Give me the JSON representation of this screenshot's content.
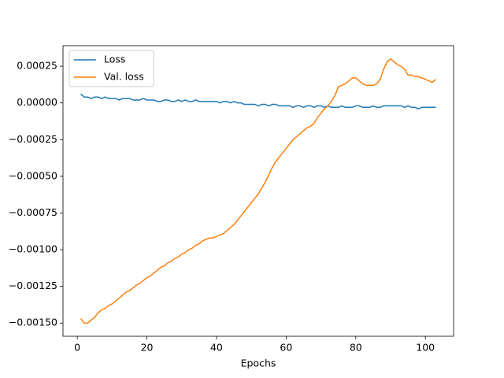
{
  "chart_data": {
    "type": "line",
    "xlabel": "Epochs",
    "x": [
      1,
      2,
      3,
      4,
      5,
      6,
      7,
      8,
      9,
      10,
      11,
      12,
      13,
      14,
      15,
      16,
      17,
      18,
      19,
      20,
      21,
      22,
      23,
      24,
      25,
      26,
      27,
      28,
      29,
      30,
      31,
      32,
      33,
      34,
      35,
      36,
      37,
      38,
      39,
      40,
      41,
      42,
      43,
      44,
      45,
      46,
      47,
      48,
      49,
      50,
      51,
      52,
      53,
      54,
      55,
      56,
      57,
      58,
      59,
      60,
      61,
      62,
      63,
      64,
      65,
      66,
      67,
      68,
      69,
      70,
      71,
      72,
      73,
      74,
      75,
      76,
      77,
      78,
      79,
      80,
      81,
      82,
      83,
      84,
      85,
      86,
      87,
      88,
      89,
      90,
      91,
      92,
      93,
      94,
      95,
      96,
      97,
      98,
      99,
      100,
      101,
      102,
      103
    ],
    "series": [
      {
        "name": "Loss",
        "color": "#1f77b4",
        "values": [
          6e-05,
          4e-05,
          4e-05,
          3e-05,
          4e-05,
          4e-05,
          3e-05,
          4e-05,
          3e-05,
          3e-05,
          3e-05,
          2e-05,
          3e-05,
          3e-05,
          3e-05,
          2e-05,
          2e-05,
          2e-05,
          3e-05,
          2e-05,
          2e-05,
          2e-05,
          1e-05,
          1e-05,
          2e-05,
          2e-05,
          1e-05,
          1e-05,
          2e-05,
          1e-05,
          2e-05,
          1e-05,
          1e-05,
          2e-05,
          1e-05,
          1e-05,
          1e-05,
          1e-05,
          1e-05,
          1e-05,
          0,
          1e-05,
          1e-05,
          0,
          1e-05,
          0,
          0,
          -1e-05,
          -1e-05,
          -1e-05,
          -1e-05,
          -2e-05,
          -1e-05,
          -1e-05,
          -2e-05,
          -1e-05,
          -1e-05,
          -2e-05,
          -2e-05,
          -2e-05,
          -2e-05,
          -3e-05,
          -2e-05,
          -2e-05,
          -3e-05,
          -2e-05,
          -2e-05,
          -3e-05,
          -2e-05,
          -2e-05,
          -3e-05,
          -2e-05,
          -3e-05,
          -3e-05,
          -3e-05,
          -2e-05,
          -3e-05,
          -3e-05,
          -3e-05,
          -2e-05,
          -2e-05,
          -3e-05,
          -3e-05,
          -3e-05,
          -2e-05,
          -3e-05,
          -3e-05,
          -2e-05,
          -2e-05,
          -2e-05,
          -2e-05,
          -2e-05,
          -2e-05,
          -3e-05,
          -2e-05,
          -3e-05,
          -3e-05,
          -4e-05,
          -3e-05,
          -3e-05,
          -3e-05,
          -3e-05,
          -3e-05
        ]
      },
      {
        "name": "Val. loss",
        "color": "#ff7f0e",
        "values": [
          -0.00147,
          -0.0015,
          -0.0015,
          -0.00148,
          -0.00146,
          -0.00143,
          -0.00141,
          -0.0014,
          -0.00138,
          -0.00137,
          -0.00135,
          -0.00133,
          -0.00131,
          -0.00129,
          -0.00128,
          -0.00126,
          -0.00124,
          -0.00123,
          -0.00121,
          -0.00119,
          -0.00118,
          -0.00116,
          -0.00114,
          -0.00112,
          -0.00111,
          -0.00109,
          -0.00108,
          -0.00106,
          -0.00105,
          -0.00103,
          -0.00102,
          -0.001,
          -0.00099,
          -0.00097,
          -0.00096,
          -0.00094,
          -0.00093,
          -0.00092,
          -0.00092,
          -0.00091,
          -0.0009,
          -0.00089,
          -0.00087,
          -0.00085,
          -0.00083,
          -0.0008,
          -0.00077,
          -0.00074,
          -0.00071,
          -0.00068,
          -0.00065,
          -0.00062,
          -0.00058,
          -0.00054,
          -0.00049,
          -0.00044,
          -0.0004,
          -0.00037,
          -0.00034,
          -0.00031,
          -0.00028,
          -0.00025,
          -0.00023,
          -0.00021,
          -0.00019,
          -0.00017,
          -0.00016,
          -0.00014,
          -0.0001,
          -7e-05,
          -4e-05,
          -2e-05,
          1e-05,
          5e-05,
          0.00011,
          0.00012,
          0.00013,
          0.00015,
          0.00017,
          0.00017,
          0.00015,
          0.00013,
          0.00012,
          0.00012,
          0.00012,
          0.00013,
          0.00016,
          0.00023,
          0.00028,
          0.0003,
          0.00028,
          0.00026,
          0.00025,
          0.00023,
          0.00019,
          0.00019,
          0.00018,
          0.00018,
          0.00017,
          0.00016,
          0.00015,
          0.00014,
          0.00016
        ]
      }
    ],
    "xlim": [
      -4.1,
      108.1
    ],
    "ylim": [
      -0.00159,
      0.00039
    ],
    "xticks": [
      0,
      20,
      40,
      60,
      80,
      100
    ],
    "yticks": [
      {
        "value": -0.0015,
        "label": "−0.00150"
      },
      {
        "value": -0.00125,
        "label": "−0.00125"
      },
      {
        "value": -0.001,
        "label": "−0.00100"
      },
      {
        "value": -0.00075,
        "label": "−0.00075"
      },
      {
        "value": -0.0005,
        "label": "−0.00050"
      },
      {
        "value": -0.00025,
        "label": "−0.00025"
      },
      {
        "value": 0,
        "label": "0.00000"
      },
      {
        "value": 0.00025,
        "label": "0.00025"
      }
    ],
    "legend": "upper left"
  }
}
